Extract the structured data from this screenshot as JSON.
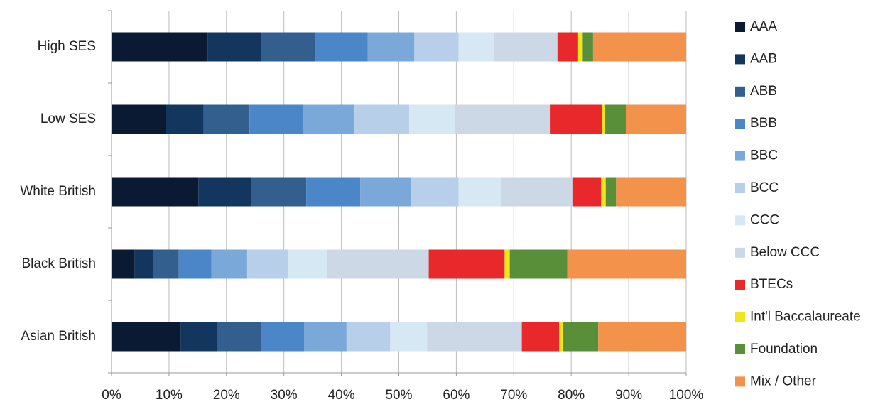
{
  "chart_data": {
    "type": "stacked-bar-horizontal",
    "categories": [
      "High SES",
      "Low SES",
      "White British",
      "Black British",
      "Asian British"
    ],
    "series": [
      {
        "name": "AAA",
        "color": "#0b1a33",
        "values": [
          16.7,
          9.5,
          15.1,
          4.0,
          12.0
        ]
      },
      {
        "name": "AAB",
        "color": "#12365e",
        "values": [
          9.3,
          6.5,
          9.3,
          3.2,
          6.4
        ]
      },
      {
        "name": "ABB",
        "color": "#335f8f",
        "values": [
          9.4,
          8.0,
          9.5,
          4.5,
          7.6
        ]
      },
      {
        "name": "BBB",
        "color": "#4a86c8",
        "values": [
          9.2,
          9.3,
          9.4,
          5.7,
          7.5
        ]
      },
      {
        "name": "BBC",
        "color": "#7aa8d8",
        "values": [
          8.1,
          9.0,
          8.8,
          6.2,
          7.4
        ]
      },
      {
        "name": "BCC",
        "color": "#b7cfe9",
        "values": [
          7.7,
          9.5,
          8.3,
          7.2,
          7.6
        ]
      },
      {
        "name": "CCC",
        "color": "#d6e8f3",
        "values": [
          6.2,
          7.9,
          7.4,
          6.7,
          6.4
        ]
      },
      {
        "name": "Below CCC",
        "color": "#ccd8e6",
        "values": [
          11.0,
          16.7,
          12.4,
          17.7,
          16.5
        ]
      },
      {
        "name": "BTECs",
        "color": "#e8282a",
        "values": [
          3.6,
          8.9,
          5.0,
          13.2,
          6.5
        ]
      },
      {
        "name": "Int'l Baccalaureate",
        "color": "#f2e41d",
        "values": [
          0.8,
          0.6,
          0.8,
          0.9,
          0.6
        ]
      },
      {
        "name": "Foundation",
        "color": "#5a8f3a",
        "values": [
          1.8,
          3.7,
          1.8,
          10.0,
          6.2
        ]
      },
      {
        "name": "Mix / Other",
        "color": "#f2924b",
        "values": [
          16.2,
          10.4,
          12.2,
          20.7,
          15.3
        ]
      }
    ],
    "xlim": [
      0,
      100
    ],
    "xticks": [
      {
        "value": 0,
        "label": "0%"
      },
      {
        "value": 10,
        "label": "10%"
      },
      {
        "value": 20,
        "label": "20%"
      },
      {
        "value": 30,
        "label": "30%"
      },
      {
        "value": 40,
        "label": "40%"
      },
      {
        "value": 50,
        "label": "50%"
      },
      {
        "value": 60,
        "label": "60%"
      },
      {
        "value": 70,
        "label": "70%"
      },
      {
        "value": 80,
        "label": "80%"
      },
      {
        "value": 90,
        "label": "90%"
      },
      {
        "value": 100,
        "label": "100%"
      }
    ],
    "grid": true
  }
}
